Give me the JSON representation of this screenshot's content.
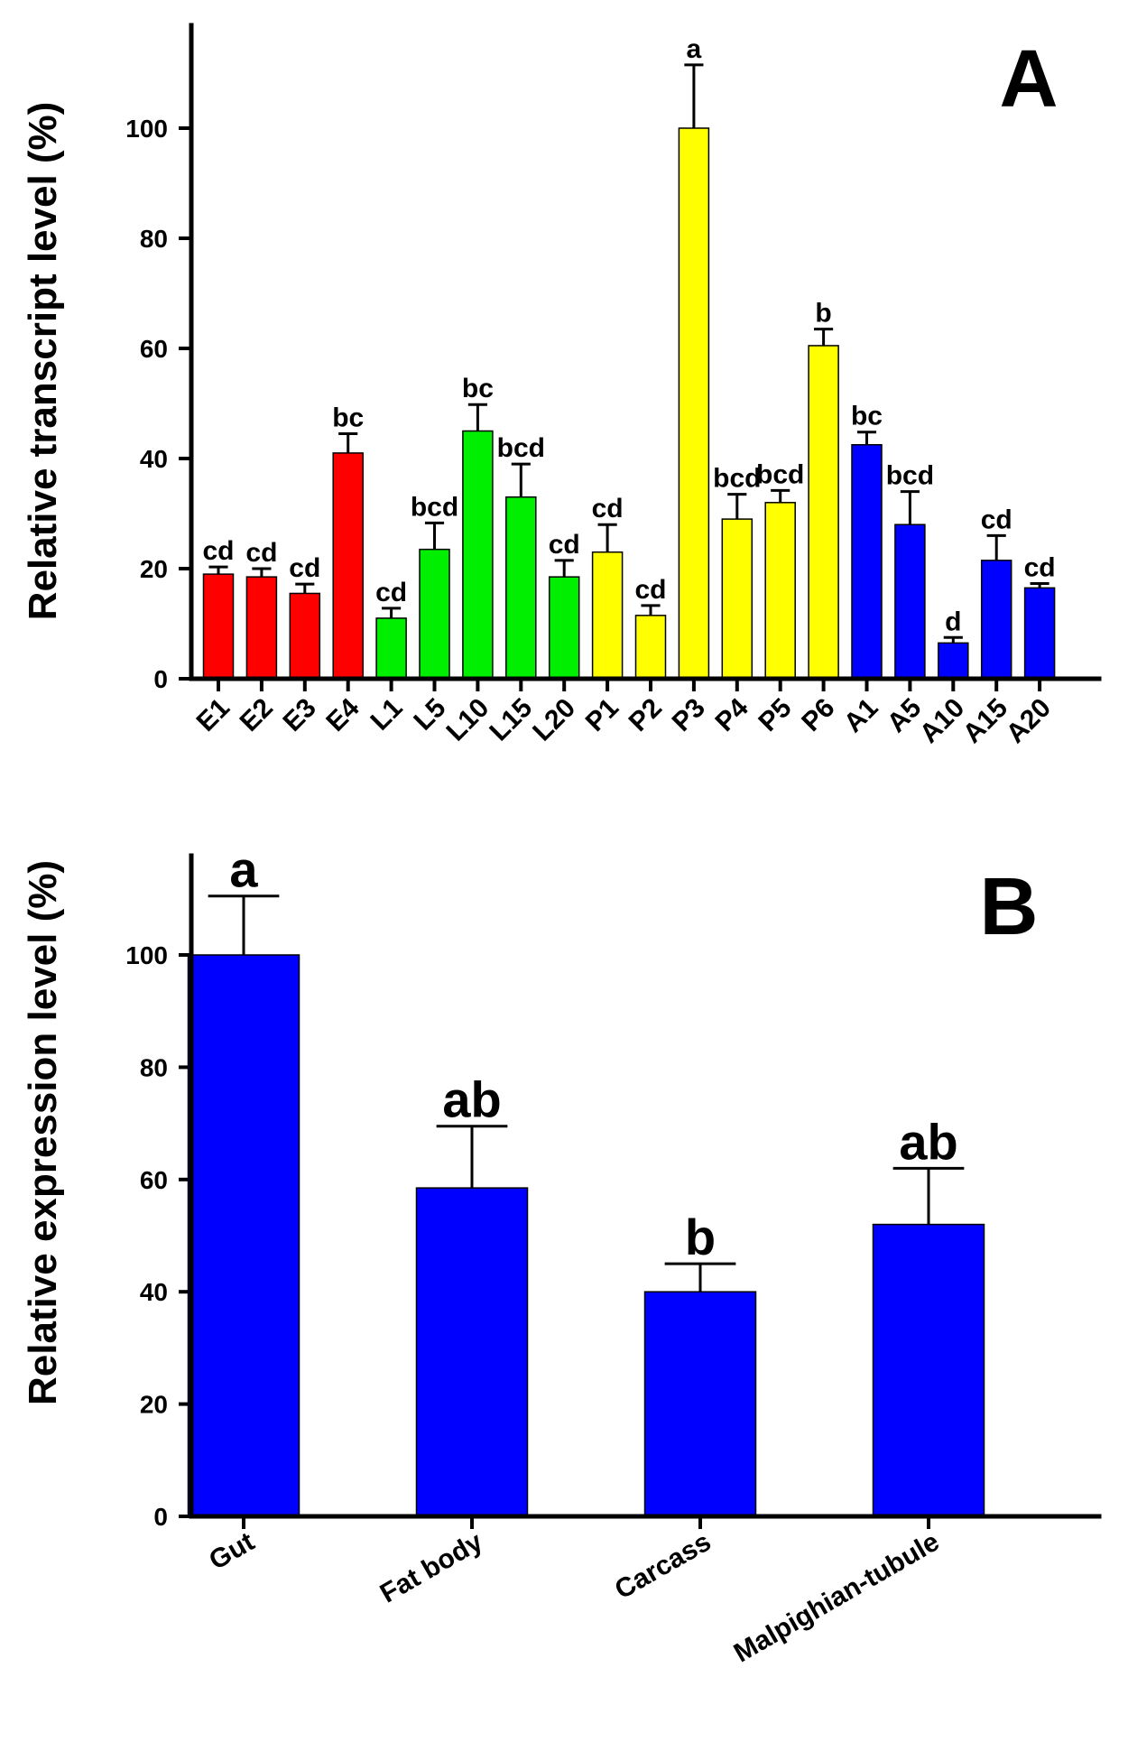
{
  "chart_data": [
    {
      "type": "bar",
      "panel_label": "A",
      "ylabel": "Relative transcript level (%)",
      "xlabel": "",
      "ylim": [
        0,
        120
      ],
      "yticks": [
        0,
        20,
        40,
        60,
        80,
        100
      ],
      "categories": [
        "E1",
        "E2",
        "E3",
        "E4",
        "L1",
        "L5",
        "L10",
        "L15",
        "L20",
        "P1",
        "P2",
        "P3",
        "P4",
        "P5",
        "P6",
        "A1",
        "A5",
        "A10",
        "A15",
        "A20"
      ],
      "values": [
        19,
        18.5,
        15.5,
        41,
        11,
        23.5,
        45,
        33,
        18.5,
        23,
        11.5,
        100,
        29,
        32,
        60.5,
        42.5,
        28,
        6.5,
        21.5,
        16.5
      ],
      "errors": [
        1.3,
        1.5,
        1.7,
        3.5,
        1.8,
        4.8,
        4.8,
        6,
        3,
        5,
        1.8,
        11.5,
        4.5,
        2.2,
        3,
        2.3,
        6,
        1,
        4.5,
        0.8
      ],
      "significance": [
        "cd",
        "cd",
        "cd",
        "bc",
        "cd",
        "bcd",
        "bc",
        "bcd",
        "cd",
        "cd",
        "cd",
        "a",
        "bcd",
        "bcd",
        "b",
        "bc",
        "bcd",
        "d",
        "cd",
        "cd"
      ],
      "stage_colors": [
        "#ff0000",
        "#ff0000",
        "#ff0000",
        "#ff0000",
        "#00ee00",
        "#00ee00",
        "#00ee00",
        "#00ee00",
        "#00ee00",
        "#ffff00",
        "#ffff00",
        "#ffff00",
        "#ffff00",
        "#ffff00",
        "#ffff00",
        "#0000ff",
        "#0000ff",
        "#0000ff",
        "#0000ff",
        "#0000ff"
      ]
    },
    {
      "type": "bar",
      "panel_label": "B",
      "ylabel": "Relative expression level (%)",
      "xlabel": "",
      "ylim": [
        0,
        120
      ],
      "yticks": [
        0,
        20,
        40,
        60,
        80,
        100
      ],
      "categories": [
        "Gut",
        "Fat body",
        "Carcass",
        "Malpighian-tubule"
      ],
      "values": [
        100,
        58.5,
        40,
        52
      ],
      "errors": [
        10.5,
        11,
        5,
        10
      ],
      "significance": [
        "a",
        "ab",
        "b",
        "ab"
      ],
      "bar_color": "#0000ff"
    }
  ]
}
